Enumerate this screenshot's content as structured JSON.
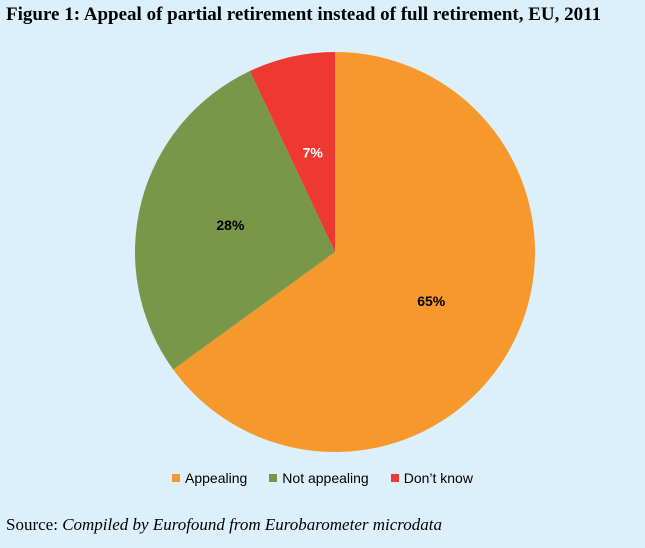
{
  "title": "Figure 1: Appeal of partial retirement instead of full retirement, EU, 2011",
  "source": {
    "prefix": "Source:",
    "text": "Compiled by Eurofound from Eurobarometer microdata"
  },
  "chart_data": {
    "type": "pie",
    "title": "Figure 1: Appeal of partial retirement instead of full retirement, EU, 2011",
    "legend_placement": "bottom",
    "slices": [
      {
        "name": "Appealing",
        "value": 65,
        "label": "65%",
        "color": "#f7982c",
        "label_color": "#000000"
      },
      {
        "name": "Not appealing",
        "value": 28,
        "label": "28%",
        "color": "#789748",
        "label_color": "#000000"
      },
      {
        "name": "Don’t know",
        "value": 7,
        "label": "7%",
        "color": "#ee3832",
        "label_color": "#ffffff"
      }
    ]
  }
}
